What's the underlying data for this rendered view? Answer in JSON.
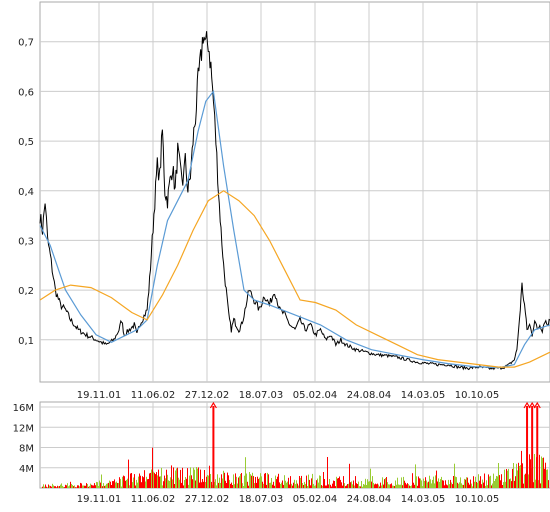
{
  "chart_data": [
    {
      "type": "line",
      "title": "",
      "xlabel": "",
      "ylabel": "",
      "x_tick_labels": [
        "19.11.01",
        "11.06.02",
        "27.12.02",
        "18.07.03",
        "05.02.04",
        "24.08.04",
        "14.03.05",
        "10.10.05"
      ],
      "y_tick_labels": [
        "0,1",
        "0,2",
        "0,3",
        "0,4",
        "0,5",
        "0,6",
        "0,7"
      ],
      "ylim": [
        0.015,
        0.78
      ],
      "grid": true,
      "series": [
        {
          "style": "price",
          "color": "#000000",
          "points": [
            [
              0,
              0.35
            ],
            [
              0.005,
              0.32
            ],
            [
              0.01,
              0.38
            ],
            [
              0.015,
              0.3
            ],
            [
              0.02,
              0.27
            ],
            [
              0.03,
              0.2
            ],
            [
              0.04,
              0.17
            ],
            [
              0.05,
              0.16
            ],
            [
              0.06,
              0.14
            ],
            [
              0.075,
              0.12
            ],
            [
              0.09,
              0.11
            ],
            [
              0.11,
              0.1
            ],
            [
              0.13,
              0.09
            ],
            [
              0.145,
              0.1
            ],
            [
              0.155,
              0.12
            ],
            [
              0.16,
              0.14
            ],
            [
              0.165,
              0.11
            ],
            [
              0.175,
              0.12
            ],
            [
              0.185,
              0.13
            ],
            [
              0.19,
              0.11
            ],
            [
              0.195,
              0.13
            ],
            [
              0.2,
              0.14
            ],
            [
              0.21,
              0.16
            ],
            [
              0.215,
              0.22
            ],
            [
              0.22,
              0.3
            ],
            [
              0.225,
              0.38
            ],
            [
              0.23,
              0.45
            ],
            [
              0.235,
              0.43
            ],
            [
              0.24,
              0.52
            ],
            [
              0.245,
              0.4
            ],
            [
              0.25,
              0.38
            ],
            [
              0.255,
              0.42
            ],
            [
              0.26,
              0.45
            ],
            [
              0.265,
              0.4
            ],
            [
              0.27,
              0.48
            ],
            [
              0.275,
              0.44
            ],
            [
              0.28,
              0.42
            ],
            [
              0.285,
              0.46
            ],
            [
              0.29,
              0.4
            ],
            [
              0.295,
              0.43
            ],
            [
              0.3,
              0.5
            ],
            [
              0.305,
              0.55
            ],
            [
              0.31,
              0.62
            ],
            [
              0.315,
              0.66
            ],
            [
              0.32,
              0.72
            ],
            [
              0.325,
              0.69
            ],
            [
              0.33,
              0.7
            ],
            [
              0.335,
              0.65
            ],
            [
              0.34,
              0.58
            ],
            [
              0.345,
              0.5
            ],
            [
              0.35,
              0.4
            ],
            [
              0.355,
              0.32
            ],
            [
              0.36,
              0.25
            ],
            [
              0.365,
              0.2
            ],
            [
              0.37,
              0.15
            ],
            [
              0.375,
              0.12
            ],
            [
              0.38,
              0.14
            ],
            [
              0.385,
              0.13
            ],
            [
              0.39,
              0.12
            ],
            [
              0.395,
              0.13
            ],
            [
              0.4,
              0.15
            ],
            [
              0.41,
              0.2
            ],
            [
              0.42,
              0.18
            ],
            [
              0.43,
              0.16
            ],
            [
              0.44,
              0.19
            ],
            [
              0.45,
              0.17
            ],
            [
              0.46,
              0.2
            ],
            [
              0.47,
              0.16
            ],
            [
              0.48,
              0.15
            ],
            [
              0.49,
              0.13
            ],
            [
              0.5,
              0.12
            ],
            [
              0.51,
              0.14
            ],
            [
              0.52,
              0.12
            ],
            [
              0.53,
              0.13
            ],
            [
              0.54,
              0.11
            ],
            [
              0.55,
              0.12
            ],
            [
              0.56,
              0.1
            ],
            [
              0.57,
              0.11
            ],
            [
              0.58,
              0.09
            ],
            [
              0.59,
              0.1
            ],
            [
              0.6,
              0.09
            ],
            [
              0.62,
              0.08
            ],
            [
              0.64,
              0.075
            ],
            [
              0.66,
              0.07
            ],
            [
              0.68,
              0.068
            ],
            [
              0.7,
              0.065
            ],
            [
              0.72,
              0.06
            ],
            [
              0.74,
              0.055
            ],
            [
              0.76,
              0.052
            ],
            [
              0.78,
              0.05
            ],
            [
              0.8,
              0.05
            ],
            [
              0.82,
              0.045
            ],
            [
              0.84,
              0.043
            ],
            [
              0.86,
              0.045
            ],
            [
              0.88,
              0.042
            ],
            [
              0.9,
              0.043
            ],
            [
              0.91,
              0.045
            ],
            [
              0.92,
              0.05
            ],
            [
              0.93,
              0.06
            ],
            [
              0.935,
              0.08
            ],
            [
              0.94,
              0.14
            ],
            [
              0.945,
              0.21
            ],
            [
              0.95,
              0.17
            ],
            [
              0.955,
              0.12
            ],
            [
              0.96,
              0.13
            ],
            [
              0.965,
              0.11
            ],
            [
              0.97,
              0.14
            ],
            [
              0.975,
              0.12
            ],
            [
              0.98,
              0.13
            ],
            [
              0.985,
              0.12
            ],
            [
              0.99,
              0.14
            ],
            [
              0.995,
              0.13
            ],
            [
              1,
              0.14
            ]
          ]
        },
        {
          "style": "short-average",
          "color": "#5b9bd5",
          "points": [
            [
              0,
              0.33
            ],
            [
              0.02,
              0.29
            ],
            [
              0.05,
              0.2
            ],
            [
              0.08,
              0.15
            ],
            [
              0.11,
              0.11
            ],
            [
              0.14,
              0.095
            ],
            [
              0.17,
              0.11
            ],
            [
              0.19,
              0.12
            ],
            [
              0.21,
              0.14
            ],
            [
              0.23,
              0.25
            ],
            [
              0.25,
              0.34
            ],
            [
              0.27,
              0.38
            ],
            [
              0.29,
              0.42
            ],
            [
              0.31,
              0.52
            ],
            [
              0.325,
              0.58
            ],
            [
              0.34,
              0.6
            ],
            [
              0.36,
              0.45
            ],
            [
              0.38,
              0.32
            ],
            [
              0.4,
              0.2
            ],
            [
              0.42,
              0.18
            ],
            [
              0.45,
              0.17
            ],
            [
              0.5,
              0.15
            ],
            [
              0.55,
              0.13
            ],
            [
              0.6,
              0.1
            ],
            [
              0.65,
              0.08
            ],
            [
              0.7,
              0.07
            ],
            [
              0.75,
              0.06
            ],
            [
              0.8,
              0.052
            ],
            [
              0.85,
              0.046
            ],
            [
              0.9,
              0.044
            ],
            [
              0.93,
              0.05
            ],
            [
              0.95,
              0.09
            ],
            [
              0.97,
              0.12
            ],
            [
              1,
              0.13
            ]
          ]
        },
        {
          "style": "long-average",
          "color": "#f5a623",
          "points": [
            [
              0,
              0.18
            ],
            [
              0.03,
              0.2
            ],
            [
              0.06,
              0.21
            ],
            [
              0.1,
              0.205
            ],
            [
              0.14,
              0.185
            ],
            [
              0.18,
              0.155
            ],
            [
              0.21,
              0.14
            ],
            [
              0.24,
              0.19
            ],
            [
              0.27,
              0.25
            ],
            [
              0.3,
              0.32
            ],
            [
              0.33,
              0.38
            ],
            [
              0.36,
              0.4
            ],
            [
              0.39,
              0.38
            ],
            [
              0.42,
              0.35
            ],
            [
              0.45,
              0.3
            ],
            [
              0.48,
              0.24
            ],
            [
              0.51,
              0.18
            ],
            [
              0.54,
              0.175
            ],
            [
              0.58,
              0.16
            ],
            [
              0.62,
              0.13
            ],
            [
              0.66,
              0.11
            ],
            [
              0.7,
              0.09
            ],
            [
              0.74,
              0.07
            ],
            [
              0.78,
              0.06
            ],
            [
              0.82,
              0.055
            ],
            [
              0.86,
              0.05
            ],
            [
              0.9,
              0.045
            ],
            [
              0.93,
              0.045
            ],
            [
              0.96,
              0.055
            ],
            [
              1,
              0.075
            ]
          ]
        }
      ]
    },
    {
      "type": "bar",
      "title": "",
      "x_tick_labels": [
        "19.11.01",
        "11.06.02",
        "27.12.02",
        "18.07.03",
        "05.02.04",
        "24.08.04",
        "14.03.05",
        "10.10.05"
      ],
      "y_tick_labels": [
        "4M",
        "8M",
        "12M",
        "16M"
      ],
      "ylim": [
        0,
        17
      ],
      "grid": true,
      "colors": {
        "up": "#99cc33",
        "down": "#ff0000"
      },
      "clipped_marker_positions": [
        0.34,
        0.955,
        0.965,
        0.975
      ],
      "volume_profile": [
        [
          0,
          0.5
        ],
        [
          0.1,
          0.8
        ],
        [
          0.15,
          1.5
        ],
        [
          0.2,
          2.5
        ],
        [
          0.25,
          3.5
        ],
        [
          0.3,
          3.0
        ],
        [
          0.34,
          2.5
        ],
        [
          0.4,
          2.2
        ],
        [
          0.5,
          2.0
        ],
        [
          0.6,
          1.8
        ],
        [
          0.7,
          1.5
        ],
        [
          0.8,
          1.8
        ],
        [
          0.88,
          2.0
        ],
        [
          0.92,
          3.0
        ],
        [
          0.95,
          6.0
        ],
        [
          0.98,
          5.0
        ],
        [
          1,
          3.0
        ]
      ]
    }
  ]
}
